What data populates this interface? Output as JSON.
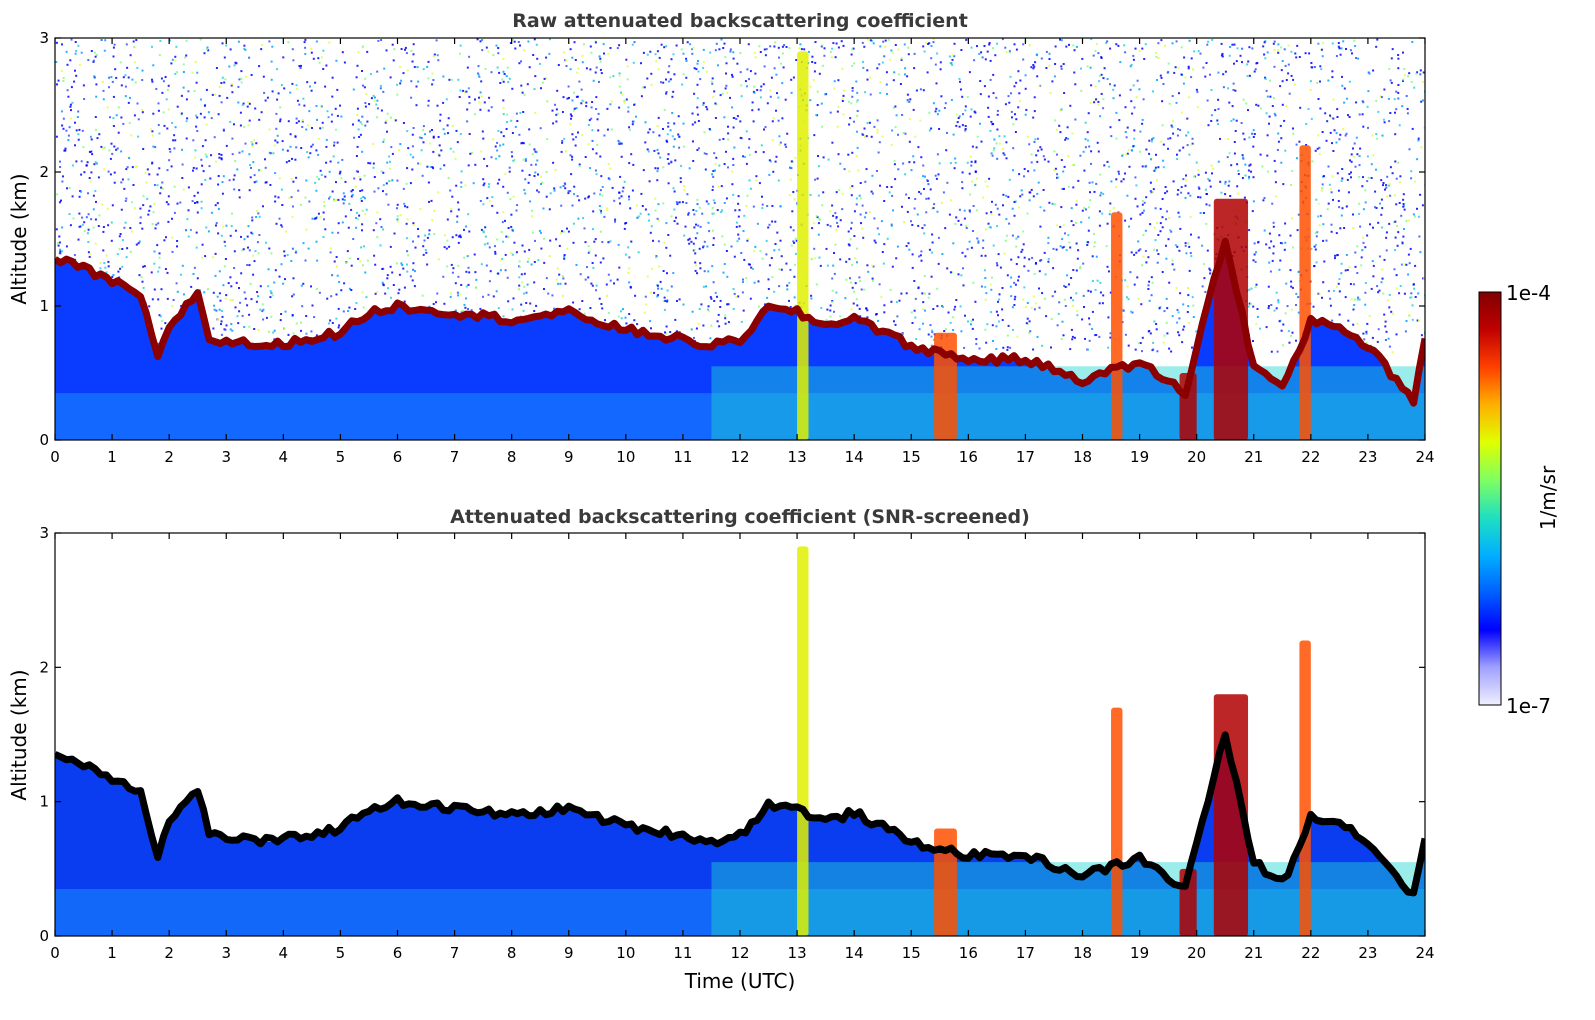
{
  "chart_data": [
    {
      "type": "heatmap",
      "title": "Raw attenuated backscattering coefficient",
      "xlabel": "",
      "ylabel": "Altitude (km)",
      "xlim": [
        0,
        24
      ],
      "ylim": [
        0,
        3
      ],
      "xticks": [
        "0",
        "1",
        "2",
        "3",
        "4",
        "5",
        "6",
        "7",
        "8",
        "9",
        "10",
        "11",
        "12",
        "13",
        "14",
        "15",
        "16",
        "17",
        "18",
        "19",
        "20",
        "21",
        "22",
        "23",
        "24"
      ],
      "yticks": [
        "0",
        "1",
        "2",
        "3"
      ],
      "color_scale": "log",
      "noise": "high",
      "layer_top_km": {
        "x": [
          0,
          0.5,
          1.0,
          1.5,
          1.8,
          2.0,
          2.5,
          2.7,
          3.8,
          4.0,
          5.0,
          5.5,
          6.0,
          7.0,
          8.0,
          9.0,
          10.0,
          11.0,
          11.5,
          12.0,
          12.5,
          13.0,
          13.5,
          14.0,
          15.0,
          16.0,
          17.0,
          18.0,
          19.0,
          19.8,
          20.0,
          20.5,
          21.0,
          21.5,
          21.8,
          22.0,
          22.5,
          23.0,
          23.5,
          23.8,
          24.0
        ],
        "y": [
          1.35,
          1.28,
          1.18,
          1.08,
          0.6,
          0.85,
          1.1,
          0.75,
          0.7,
          0.72,
          0.8,
          0.95,
          1.0,
          0.95,
          0.9,
          0.95,
          0.82,
          0.75,
          0.7,
          0.75,
          0.98,
          0.95,
          0.85,
          0.92,
          0.7,
          0.6,
          0.6,
          0.45,
          0.58,
          0.35,
          0.7,
          1.5,
          0.55,
          0.4,
          0.65,
          0.9,
          0.85,
          0.7,
          0.45,
          0.3,
          0.75
        ]
      },
      "features": [
        {
          "x_start": 15.4,
          "x_end": 15.8,
          "y_top": 0.8,
          "level": "high"
        },
        {
          "x_start": 19.7,
          "x_end": 20.0,
          "y_top": 0.5,
          "level": "very-high"
        },
        {
          "x_start": 20.3,
          "x_end": 20.9,
          "y_top": 1.8,
          "level": "very-high"
        },
        {
          "x_start": 18.5,
          "x_end": 18.7,
          "y_top": 1.7,
          "level": "high"
        },
        {
          "x_start": 21.8,
          "x_end": 22.0,
          "y_top": 2.2,
          "level": "high"
        },
        {
          "x_start": 13.0,
          "x_end": 13.2,
          "y_top": 2.9,
          "level": "medium"
        }
      ]
    },
    {
      "type": "heatmap",
      "title": "Attenuated backscattering coefficient (SNR-screened)",
      "xlabel": "Time (UTC)",
      "ylabel": "Altitude (km)",
      "xlim": [
        0,
        24
      ],
      "ylim": [
        0,
        3
      ],
      "xticks": [
        "0",
        "1",
        "2",
        "3",
        "4",
        "5",
        "6",
        "7",
        "8",
        "9",
        "10",
        "11",
        "12",
        "13",
        "14",
        "15",
        "16",
        "17",
        "18",
        "19",
        "20",
        "21",
        "22",
        "23",
        "24"
      ],
      "yticks": [
        "0",
        "1",
        "2",
        "3"
      ],
      "color_scale": "log",
      "noise": "screened",
      "layer_top_km": {
        "x": [
          0,
          0.5,
          1.0,
          1.5,
          1.8,
          2.0,
          2.5,
          2.7,
          3.8,
          4.0,
          5.0,
          5.5,
          6.0,
          7.0,
          8.0,
          9.0,
          10.0,
          11.0,
          11.5,
          12.0,
          12.5,
          13.0,
          13.5,
          14.0,
          15.0,
          16.0,
          17.0,
          18.0,
          19.0,
          19.8,
          20.0,
          20.5,
          21.0,
          21.5,
          21.8,
          22.0,
          22.5,
          23.0,
          23.5,
          23.8,
          24.0
        ],
        "y": [
          1.35,
          1.28,
          1.18,
          1.08,
          0.6,
          0.85,
          1.1,
          0.75,
          0.7,
          0.72,
          0.8,
          0.95,
          1.0,
          0.95,
          0.9,
          0.95,
          0.82,
          0.75,
          0.7,
          0.75,
          0.98,
          0.95,
          0.85,
          0.92,
          0.7,
          0.6,
          0.6,
          0.45,
          0.58,
          0.35,
          0.7,
          1.5,
          0.55,
          0.4,
          0.65,
          0.9,
          0.85,
          0.7,
          0.45,
          0.3,
          0.75
        ]
      },
      "features": [
        {
          "x_start": 15.4,
          "x_end": 15.8,
          "y_top": 0.8,
          "level": "high"
        },
        {
          "x_start": 19.7,
          "x_end": 20.0,
          "y_top": 0.5,
          "level": "very-high"
        },
        {
          "x_start": 20.3,
          "x_end": 20.9,
          "y_top": 1.8,
          "level": "very-high"
        },
        {
          "x_start": 18.5,
          "x_end": 18.7,
          "y_top": 1.7,
          "level": "high"
        },
        {
          "x_start": 21.8,
          "x_end": 22.0,
          "y_top": 2.2,
          "level": "high"
        },
        {
          "x_start": 13.0,
          "x_end": 13.2,
          "y_top": 2.9,
          "level": "medium"
        }
      ]
    }
  ],
  "colorbar": {
    "max_label": "1e-4",
    "min_label": "1e-7",
    "label": "1/m/sr",
    "colors": [
      "#f0f0ff",
      "#a0a0ff",
      "#0000ff",
      "#0060ff",
      "#00b0ff",
      "#20e0c0",
      "#80ff60",
      "#e0ff00",
      "#ffb000",
      "#ff4000",
      "#c00000",
      "#800000"
    ]
  }
}
